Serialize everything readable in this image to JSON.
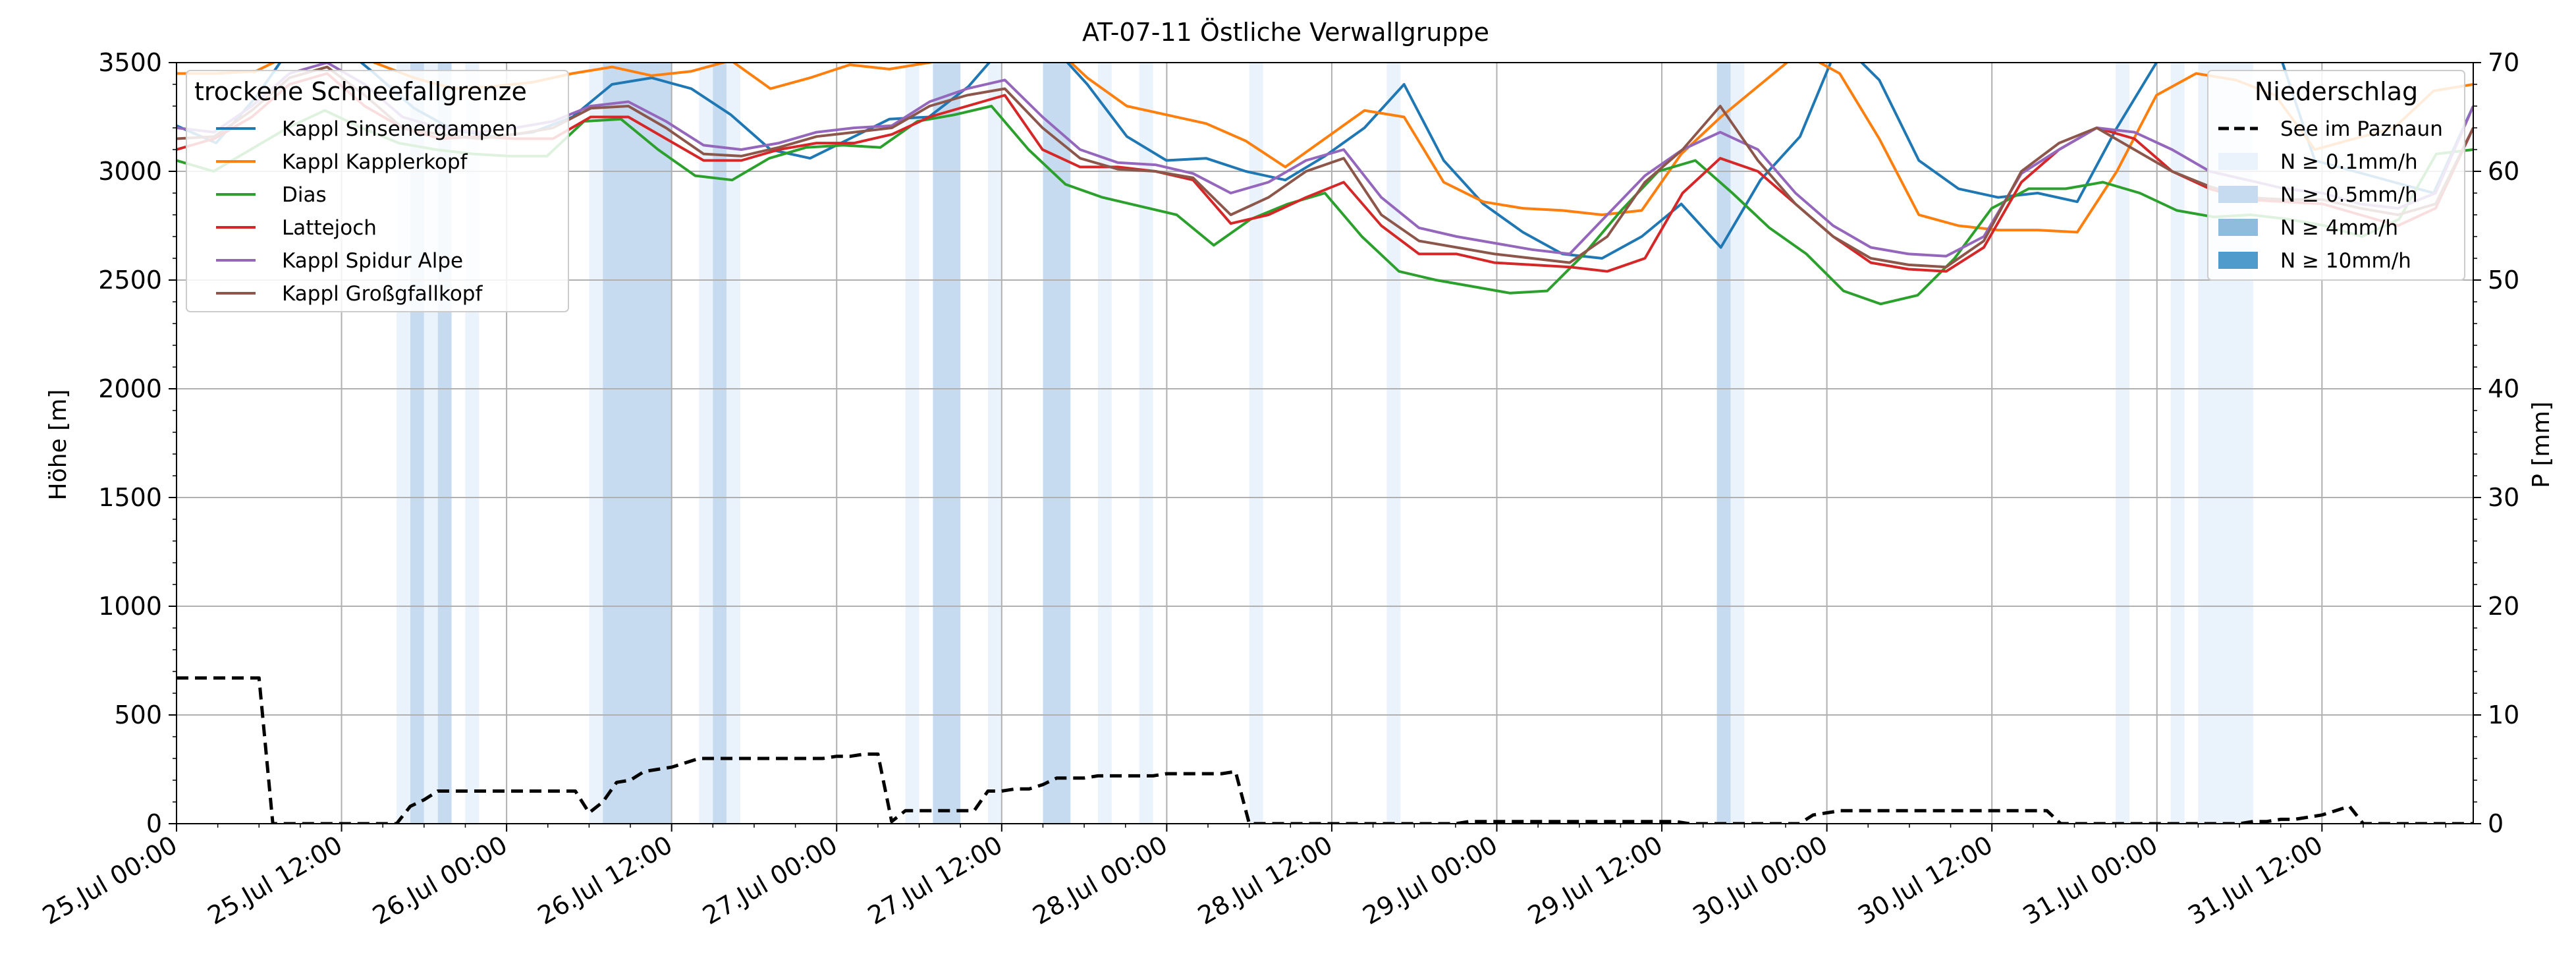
{
  "chart_data": {
    "type": "line",
    "title": "AT-07-11 Östliche Verwallgruppe",
    "ylabel_left": "Höhe [m]",
    "ylabel_right": "P [mm]",
    "x_start": "25.Jul 00:00",
    "x_step_hours": 3,
    "xlim_hours": [
      0,
      167
    ],
    "ylim_left": [
      0,
      3500
    ],
    "ylim_right": [
      0,
      70
    ],
    "grid": true,
    "x_ticks": [
      "25.Jul 00:00",
      "25.Jul 12:00",
      "26.Jul 00:00",
      "26.Jul 12:00",
      "27.Jul 00:00",
      "27.Jul 12:00",
      "28.Jul 00:00",
      "28.Jul 12:00",
      "29.Jul 00:00",
      "29.Jul 12:00",
      "30.Jul 00:00",
      "30.Jul 12:00",
      "31.Jul 00:00",
      "31.Jul 12:00"
    ],
    "y_ticks_left": [
      0,
      500,
      1000,
      1500,
      2000,
      2500,
      3000,
      3500
    ],
    "y_ticks_right": [
      0,
      10,
      20,
      30,
      40,
      50,
      60,
      70
    ],
    "legend_left": {
      "title": "trockene Schneefallgrenze",
      "placement": "top-left"
    },
    "legend_right": {
      "title": "Niederschlag",
      "placement": "top-right"
    },
    "series": [
      {
        "name": "Kappl Sinsenergampen",
        "color": "#1f77b4",
        "values": [
          3210,
          3130,
          3340,
          3600,
          3600,
          3450,
          3290,
          3190,
          3160,
          3180,
          3250,
          3400,
          3430,
          3380,
          3260,
          3100,
          3060,
          3150,
          3240,
          3250,
          3390,
          3600,
          3600,
          3400,
          3160,
          3050,
          3060,
          3000,
          2960,
          3070,
          3200,
          3400,
          3050,
          2850,
          2720,
          2620,
          2600,
          2700,
          2850,
          2650,
          2960,
          3160,
          3600,
          3420,
          3050,
          2920,
          2880,
          2900,
          2860,
          3200,
          3500,
          3650,
          3680,
          3600,
          3050,
          3000,
          2950,
          2900,
          3300
        ]
      },
      {
        "name": "Kappl Kapplerkopf",
        "color": "#ff7f0e",
        "values": [
          3450,
          3450,
          3460,
          3550,
          3600,
          3500,
          3430,
          3380,
          3390,
          3410,
          3450,
          3480,
          3440,
          3460,
          3510,
          3380,
          3430,
          3490,
          3470,
          3500,
          3530,
          3560,
          3600,
          3430,
          3300,
          3260,
          3220,
          3140,
          3020,
          3150,
          3280,
          3250,
          2950,
          2860,
          2830,
          2820,
          2800,
          2820,
          3080,
          3250,
          3400,
          3550,
          3450,
          3150,
          2800,
          2750,
          2730,
          2730,
          2720,
          3000,
          3350,
          3450,
          3420,
          3350,
          3100,
          3150,
          3200,
          3370,
          3400
        ]
      },
      {
        "name": "Dias",
        "color": "#2ca02c",
        "values": [
          3050,
          3000,
          3100,
          3200,
          3280,
          3200,
          3130,
          3100,
          3080,
          3070,
          3070,
          3230,
          3240,
          3100,
          2980,
          2960,
          3060,
          3110,
          3120,
          3110,
          3230,
          3260,
          3300,
          3100,
          2940,
          2880,
          2840,
          2800,
          2660,
          2780,
          2850,
          2900,
          2700,
          2540,
          2500,
          2470,
          2440,
          2450,
          2620,
          2820,
          3000,
          3050,
          2900,
          2740,
          2620,
          2450,
          2390,
          2430,
          2600,
          2830,
          2920,
          2920,
          2950,
          2900,
          2820,
          2790,
          2800,
          2780,
          2750,
          2700,
          2780,
          3080,
          3100
        ]
      },
      {
        "name": "Lattejoch",
        "color": "#d62728",
        "values": [
          3100,
          3150,
          3250,
          3400,
          3450,
          3300,
          3200,
          3150,
          3160,
          3150,
          3150,
          3250,
          3250,
          3150,
          3050,
          3050,
          3100,
          3130,
          3130,
          3170,
          3250,
          3300,
          3350,
          3100,
          3020,
          3020,
          3000,
          2960,
          2760,
          2800,
          2880,
          2950,
          2750,
          2620,
          2620,
          2580,
          2570,
          2560,
          2540,
          2600,
          2900,
          3060,
          3000,
          2850,
          2700,
          2580,
          2550,
          2540,
          2650,
          2950,
          3100,
          3200,
          3150,
          3000,
          2920,
          2870,
          2860,
          2850,
          2800,
          2750,
          2830,
          3200
        ]
      },
      {
        "name": "Kappl Spidur Alpe",
        "color": "#9467bd",
        "values": [
          3200,
          3180,
          3300,
          3450,
          3500,
          3400,
          3250,
          3200,
          3180,
          3200,
          3230,
          3300,
          3320,
          3230,
          3120,
          3100,
          3130,
          3180,
          3200,
          3210,
          3320,
          3380,
          3420,
          3250,
          3100,
          3040,
          3030,
          2990,
          2900,
          2950,
          3050,
          3100,
          2880,
          2740,
          2700,
          2670,
          2640,
          2620,
          2800,
          2980,
          3100,
          3180,
          3100,
          2900,
          2750,
          2650,
          2620,
          2610,
          2700,
          2990,
          3100,
          3200,
          3180,
          3100,
          3000,
          2960,
          2920,
          2900,
          2850,
          2830,
          2900,
          3300
        ]
      },
      {
        "name": "Kappl Großgfallkopf",
        "color": "#8c564b",
        "values": [
          3150,
          3160,
          3280,
          3430,
          3480,
          3350,
          3200,
          3170,
          3150,
          3170,
          3200,
          3290,
          3300,
          3200,
          3080,
          3070,
          3110,
          3160,
          3180,
          3200,
          3300,
          3350,
          3380,
          3200,
          3060,
          3010,
          3000,
          2970,
          2800,
          2880,
          3000,
          3060,
          2800,
          2680,
          2650,
          2620,
          2600,
          2580,
          2700,
          2950,
          3100,
          3300,
          3050,
          2850,
          2700,
          2600,
          2570,
          2560,
          2680,
          3000,
          3130,
          3200,
          3100,
          3000,
          2930,
          2880,
          2870,
          2870,
          2830,
          2800,
          2850,
          3200
        ]
      },
      {
        "name": "See im Paznaun",
        "color": "#000000",
        "dashed": true,
        "values": [
          670,
          670,
          670,
          670,
          670,
          670,
          670,
          0,
          0,
          0,
          0,
          0,
          0,
          0,
          0,
          0,
          0,
          80,
          110,
          150,
          150,
          150,
          150,
          150,
          150,
          150,
          150,
          150,
          150,
          150,
          50,
          100,
          190,
          200,
          240,
          250,
          260,
          280,
          300,
          300,
          300,
          300,
          300,
          300,
          300,
          300,
          300,
          300,
          310,
          310,
          320,
          320,
          10,
          60,
          60,
          60,
          60,
          60,
          60,
          150,
          150,
          160,
          160,
          180,
          210,
          210,
          210,
          220,
          220,
          220,
          220,
          220,
          230,
          230,
          230,
          230,
          230,
          240,
          0,
          0,
          0,
          0,
          0,
          0,
          0,
          0,
          0,
          0,
          0,
          0,
          0,
          0,
          0,
          0,
          10,
          10,
          10,
          10,
          10,
          10,
          10,
          10,
          10,
          10,
          10,
          10,
          10,
          10,
          10,
          10,
          0,
          0,
          0,
          0,
          0,
          0,
          0,
          0,
          0,
          40,
          50,
          60,
          60,
          60,
          60,
          60,
          60,
          60,
          60,
          60,
          60,
          60,
          60,
          60,
          60,
          60,
          60,
          0,
          0,
          0,
          0,
          0,
          0,
          0,
          0,
          0,
          0,
          0,
          0,
          0,
          0,
          10,
          10,
          20,
          20,
          30,
          40,
          60,
          80,
          0,
          0,
          0,
          0,
          0,
          0,
          0,
          0,
          0,
          0,
          0,
          0,
          0,
          0,
          0,
          0,
          0,
          0
        ]
      }
    ],
    "precip_legend": [
      "N ≥ 0.1mm/h",
      "N ≥ 0.5mm/h",
      "N ≥ 4mm/h",
      "N ≥ 10mm/h"
    ],
    "precip_colors": [
      "#eaf2fb",
      "#c6dbef",
      "#8fbcdc",
      "#4f9bcb"
    ],
    "precip_bands": [
      {
        "start_hour": 16,
        "end_hour": 17,
        "level": 0
      },
      {
        "start_hour": 17,
        "end_hour": 18,
        "level": 1
      },
      {
        "start_hour": 18,
        "end_hour": 19,
        "level": 0
      },
      {
        "start_hour": 19,
        "end_hour": 20,
        "level": 1
      },
      {
        "start_hour": 21,
        "end_hour": 22,
        "level": 0
      },
      {
        "start_hour": 30,
        "end_hour": 31,
        "level": 0
      },
      {
        "start_hour": 31,
        "end_hour": 36,
        "level": 1
      },
      {
        "start_hour": 38,
        "end_hour": 39,
        "level": 0
      },
      {
        "start_hour": 39,
        "end_hour": 40,
        "level": 1
      },
      {
        "start_hour": 40,
        "end_hour": 41,
        "level": 0
      },
      {
        "start_hour": 53,
        "end_hour": 54,
        "level": 0
      },
      {
        "start_hour": 55,
        "end_hour": 57,
        "level": 1
      },
      {
        "start_hour": 59,
        "end_hour": 60,
        "level": 0
      },
      {
        "start_hour": 63,
        "end_hour": 65,
        "level": 1
      },
      {
        "start_hour": 67,
        "end_hour": 68,
        "level": 0
      },
      {
        "start_hour": 70,
        "end_hour": 71,
        "level": 0
      },
      {
        "start_hour": 78,
        "end_hour": 79,
        "level": 0
      },
      {
        "start_hour": 88,
        "end_hour": 89,
        "level": 0
      },
      {
        "start_hour": 112,
        "end_hour": 113,
        "level": 1
      },
      {
        "start_hour": 113,
        "end_hour": 114,
        "level": 0
      },
      {
        "start_hour": 141,
        "end_hour": 142,
        "level": 0
      },
      {
        "start_hour": 145,
        "end_hour": 146,
        "level": 0
      },
      {
        "start_hour": 147,
        "end_hour": 151,
        "level": 0
      }
    ]
  }
}
